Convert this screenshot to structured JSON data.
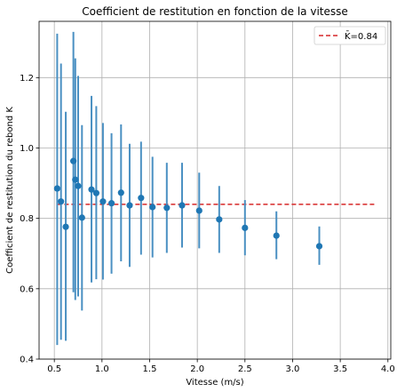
{
  "chart_data": {
    "type": "scatter",
    "title": "Coefficient de restitution en fonction de la vitesse",
    "xlabel": "Vitesse (m/s)",
    "ylabel": "Coefficient de restitution du rebond K",
    "xlim": [
      0.34,
      4.03
    ],
    "ylim": [
      0.4,
      1.36
    ],
    "xticks": [
      0.5,
      1.0,
      1.5,
      2.0,
      2.5,
      3.0,
      3.5,
      4.0
    ],
    "xtick_labels": [
      "0.5",
      "1.0",
      "1.5",
      "2.0",
      "2.5",
      "3.0",
      "3.5",
      "4.0"
    ],
    "yticks": [
      0.4,
      0.6,
      0.8,
      1.0,
      1.2
    ],
    "ytick_labels": [
      "0.4",
      "0.6",
      "0.8",
      "1.0",
      "1.2"
    ],
    "grid": true,
    "legend_position": "top-right",
    "points": [
      {
        "x": 0.53,
        "y": 0.885,
        "yerr_low": 0.44,
        "yerr_high": 1.325
      },
      {
        "x": 0.57,
        "y": 0.848,
        "yerr_low": 0.455,
        "yerr_high": 1.24
      },
      {
        "x": 0.62,
        "y": 0.776,
        "yerr_low": 0.452,
        "yerr_high": 1.103
      },
      {
        "x": 0.7,
        "y": 0.963,
        "yerr_low": 0.59,
        "yerr_high": 1.33
      },
      {
        "x": 0.72,
        "y": 0.91,
        "yerr_low": 0.568,
        "yerr_high": 1.255
      },
      {
        "x": 0.75,
        "y": 0.892,
        "yerr_low": 0.578,
        "yerr_high": 1.205
      },
      {
        "x": 0.79,
        "y": 0.802,
        "yerr_low": 0.538,
        "yerr_high": 1.065
      },
      {
        "x": 0.89,
        "y": 0.882,
        "yerr_low": 0.618,
        "yerr_high": 1.148
      },
      {
        "x": 0.94,
        "y": 0.872,
        "yerr_low": 0.627,
        "yerr_high": 1.119
      },
      {
        "x": 1.01,
        "y": 0.848,
        "yerr_low": 0.626,
        "yerr_high": 1.071
      },
      {
        "x": 1.1,
        "y": 0.843,
        "yerr_low": 0.643,
        "yerr_high": 1.042
      },
      {
        "x": 1.2,
        "y": 0.873,
        "yerr_low": 0.678,
        "yerr_high": 1.067
      },
      {
        "x": 1.29,
        "y": 0.837,
        "yerr_low": 0.662,
        "yerr_high": 1.012
      },
      {
        "x": 1.41,
        "y": 0.858,
        "yerr_low": 0.697,
        "yerr_high": 1.018
      },
      {
        "x": 1.53,
        "y": 0.832,
        "yerr_low": 0.689,
        "yerr_high": 0.975
      },
      {
        "x": 1.68,
        "y": 0.83,
        "yerr_low": 0.702,
        "yerr_high": 0.958
      },
      {
        "x": 1.84,
        "y": 0.837,
        "yerr_low": 0.717,
        "yerr_high": 0.958
      },
      {
        "x": 2.02,
        "y": 0.822,
        "yerr_low": 0.715,
        "yerr_high": 0.93
      },
      {
        "x": 2.23,
        "y": 0.797,
        "yerr_low": 0.702,
        "yerr_high": 0.892
      },
      {
        "x": 2.5,
        "y": 0.773,
        "yerr_low": 0.695,
        "yerr_high": 0.852
      },
      {
        "x": 2.83,
        "y": 0.751,
        "yerr_low": 0.684,
        "yerr_high": 0.82
      },
      {
        "x": 3.28,
        "y": 0.721,
        "yerr_low": 0.668,
        "yerr_high": 0.777
      }
    ],
    "mean_line": {
      "label": "K̄=0.84",
      "value": 0.84,
      "x_start": 0.53,
      "x_end": 3.87
    },
    "colors": {
      "points": "#1f77b4",
      "errorbars": "#4a90c2",
      "mean_line": "#d62728"
    }
  }
}
